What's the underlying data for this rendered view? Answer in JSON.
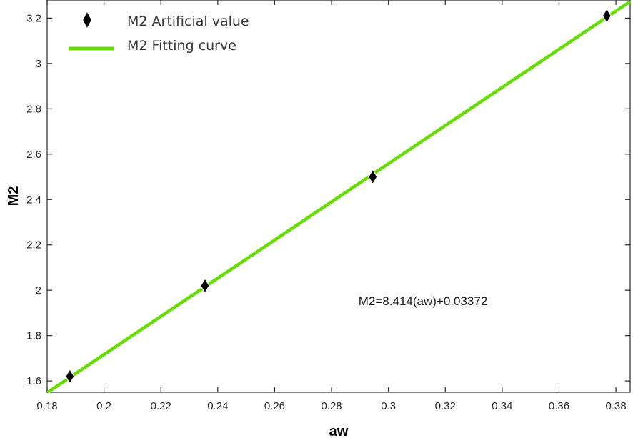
{
  "chart_data": {
    "type": "scatter",
    "xlabel": "aw",
    "ylabel": "M2",
    "xlim": [
      0.18,
      0.385
    ],
    "ylim": [
      1.55,
      3.28
    ],
    "xticks": [
      0.18,
      0.2,
      0.22,
      0.24,
      0.26,
      0.28,
      0.3,
      0.32,
      0.34,
      0.36,
      0.38
    ],
    "xtick_labels": [
      "0.18",
      "0.2",
      "0.22",
      "0.24",
      "0.26",
      "0.28",
      "0.3",
      "0.32",
      "0.34",
      "0.36",
      "0.38"
    ],
    "yticks": [
      1.6,
      1.8,
      2.0,
      2.2,
      2.4,
      2.6,
      2.8,
      3.0,
      3.2
    ],
    "ytick_labels": [
      "1.6",
      "1.8",
      "2",
      "2.2",
      "2.4",
      "2.6",
      "2.8",
      "3",
      "3.2"
    ],
    "grid": false,
    "legend": "top-left",
    "series": [
      {
        "name": "M2 Artificial value",
        "kind": "scatter",
        "marker": "diamond",
        "color": "#000000",
        "x": [
          0.188,
          0.2355,
          0.2945,
          0.3768
        ],
        "y": [
          1.62,
          2.02,
          2.5,
          3.21
        ]
      },
      {
        "name": "M2 Fitting curve",
        "kind": "line",
        "color": "#66dd00",
        "slope": 8.414,
        "intercept": 0.03372
      }
    ],
    "annotations": [
      {
        "text": "M2=8.414(aw)+0.03372",
        "x": 0.294,
        "y": 1.95
      }
    ]
  }
}
